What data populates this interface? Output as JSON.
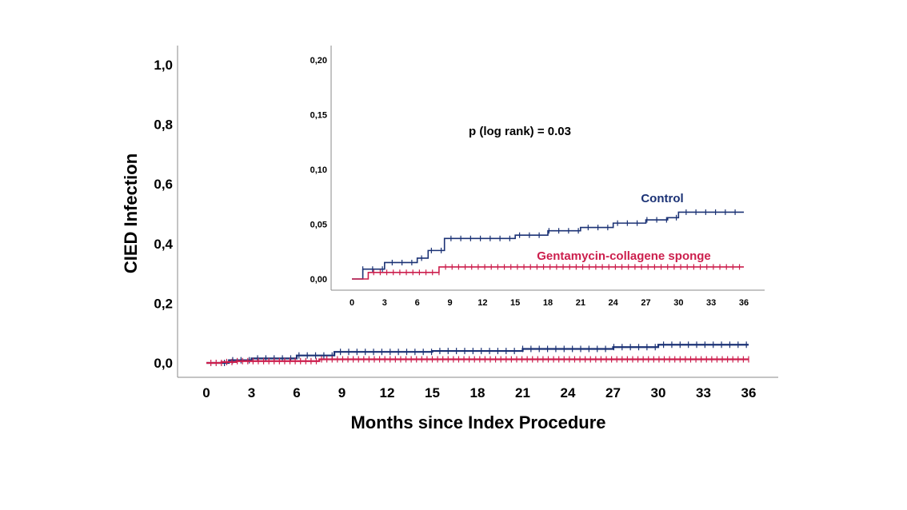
{
  "chart_data": [
    {
      "type": "line",
      "subtype": "kaplan-meier-cumulative-incidence",
      "title": "",
      "xlabel": "Months since Index Procedure",
      "ylabel": "CIED Infection",
      "xlim": [
        0,
        36
      ],
      "ylim": [
        0,
        1.0
      ],
      "x_ticks": [
        "0",
        "3",
        "6",
        "9",
        "12",
        "15",
        "18",
        "21",
        "24",
        "27",
        "30",
        "33",
        "36"
      ],
      "y_ticks": [
        "0,0",
        "0,2",
        "0,4",
        "0,6",
        "0,8",
        "1,0"
      ],
      "grid": false,
      "legend": "none",
      "series": [
        {
          "color": "#1b3275",
          "x": [
            0,
            1.5,
            3,
            6,
            8.5,
            15,
            21,
            27,
            30,
            36
          ],
          "y": [
            0,
            0.009,
            0.015,
            0.025,
            0.037,
            0.04,
            0.047,
            0.053,
            0.061,
            0.061
          ]
        },
        {
          "color": "#cc1f4d",
          "x": [
            0,
            1,
            2,
            7.5,
            36
          ],
          "y": [
            0,
            0.003,
            0.006,
            0.012,
            0.012
          ]
        }
      ]
    },
    {
      "type": "line",
      "subtype": "kaplan-meier-cumulative-incidence-inset",
      "title": "",
      "xlim": [
        0,
        36
      ],
      "ylim": [
        0,
        0.2
      ],
      "x_ticks": [
        "0",
        "3",
        "6",
        "9",
        "12",
        "15",
        "18",
        "21",
        "24",
        "27",
        "30",
        "33",
        "36"
      ],
      "y_ticks": [
        "0,00",
        "0,05",
        "0,10",
        "0,15",
        "0,20"
      ],
      "annotation": "p (log rank) = 0.03",
      "series": [
        {
          "name": "Control",
          "color": "#1b3275",
          "x": [
            0,
            1,
            3,
            6,
            7,
            8.5,
            15,
            18,
            21,
            24,
            27,
            29,
            30,
            36
          ],
          "y": [
            0,
            0.009,
            0.015,
            0.019,
            0.026,
            0.037,
            0.04,
            0.044,
            0.047,
            0.051,
            0.054,
            0.056,
            0.061,
            0.061
          ]
        },
        {
          "name": "Gentamycin-collagene sponge",
          "color": "#cc1f4d",
          "x": [
            0,
            1.5,
            8,
            36
          ],
          "y": [
            0,
            0.006,
            0.011,
            0.011
          ]
        }
      ]
    }
  ]
}
